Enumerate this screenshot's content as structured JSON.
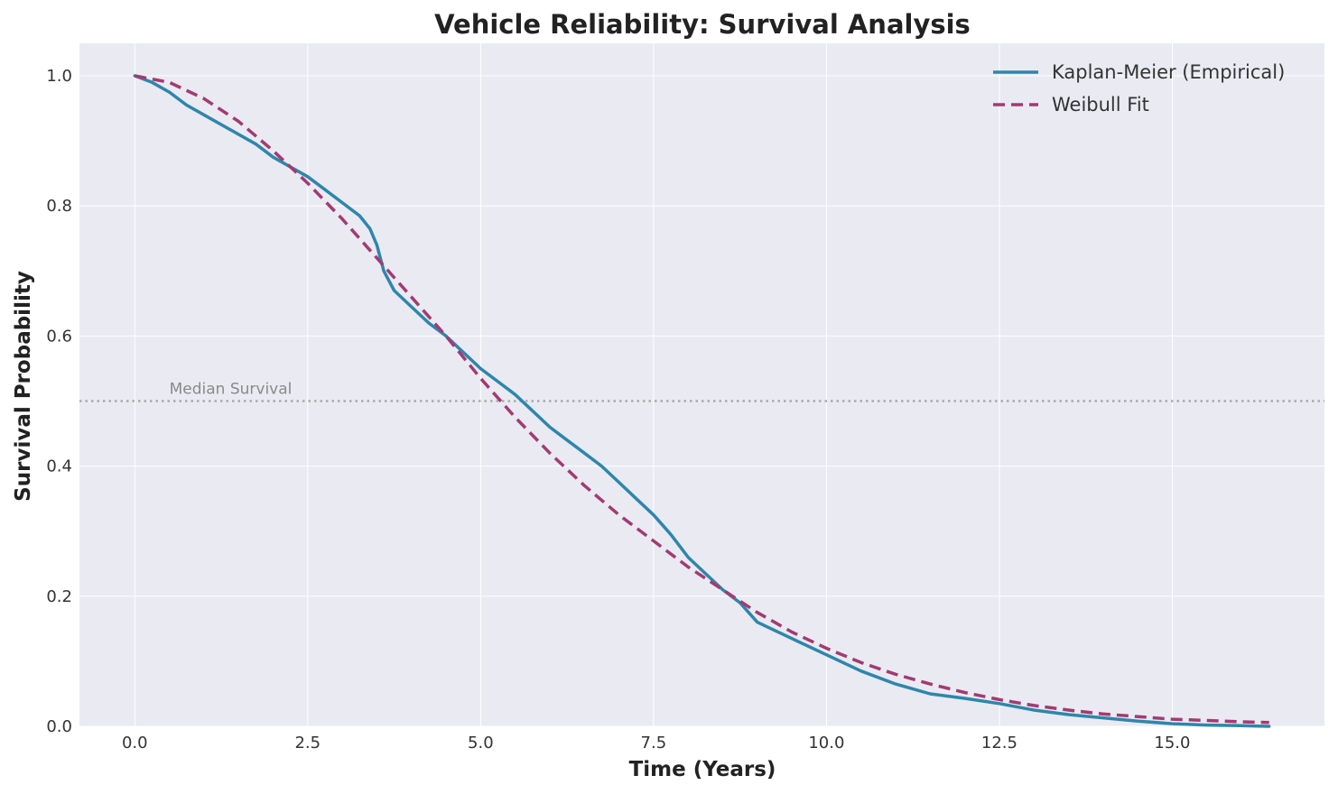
{
  "chart_data": {
    "type": "line",
    "title": "Vehicle Reliability: Survival Analysis",
    "xlabel": "Time (Years)",
    "ylabel": "Survival Probability",
    "xlim": [
      -0.8,
      17.2
    ],
    "ylim": [
      0.0,
      1.05
    ],
    "x_ticks": [
      0.0,
      2.5,
      5.0,
      7.5,
      10.0,
      12.5,
      15.0
    ],
    "x_tick_labels": [
      "0.0",
      "2.5",
      "5.0",
      "7.5",
      "10.0",
      "12.5",
      "15.0"
    ],
    "y_ticks": [
      0.0,
      0.2,
      0.4,
      0.6,
      0.8,
      1.0
    ],
    "y_tick_labels": [
      "0.0",
      "0.2",
      "0.4",
      "0.6",
      "0.8",
      "1.0"
    ],
    "grid": true,
    "legend_position": "top-right",
    "reference_line": {
      "y": 0.5,
      "label": "Median Survival",
      "color": "#aaaaaa",
      "style": "dotted"
    },
    "background_color": "#eaeaf2",
    "series": [
      {
        "name": "Kaplan-Meier (Empirical)",
        "color": "#2e86ab",
        "style": "solid",
        "x": [
          0.0,
          0.25,
          0.5,
          0.75,
          1.0,
          1.25,
          1.5,
          1.75,
          2.0,
          2.25,
          2.5,
          2.75,
          3.0,
          3.25,
          3.4,
          3.5,
          3.6,
          3.75,
          4.0,
          4.25,
          4.5,
          4.75,
          5.0,
          5.25,
          5.5,
          5.75,
          6.0,
          6.25,
          6.5,
          6.75,
          7.0,
          7.25,
          7.5,
          7.75,
          8.0,
          8.25,
          8.5,
          8.75,
          9.0,
          9.5,
          10.0,
          10.5,
          11.0,
          11.5,
          12.0,
          12.5,
          13.0,
          13.5,
          14.0,
          14.5,
          15.0,
          15.5,
          16.0,
          16.4
        ],
        "y": [
          1.0,
          0.99,
          0.975,
          0.955,
          0.94,
          0.925,
          0.91,
          0.895,
          0.875,
          0.86,
          0.845,
          0.825,
          0.805,
          0.785,
          0.765,
          0.74,
          0.7,
          0.67,
          0.645,
          0.62,
          0.6,
          0.575,
          0.55,
          0.53,
          0.51,
          0.485,
          0.46,
          0.44,
          0.42,
          0.4,
          0.375,
          0.35,
          0.325,
          0.295,
          0.26,
          0.235,
          0.21,
          0.19,
          0.16,
          0.135,
          0.11,
          0.085,
          0.065,
          0.05,
          0.043,
          0.035,
          0.025,
          0.018,
          0.013,
          0.008,
          0.004,
          0.002,
          0.001,
          0.0
        ]
      },
      {
        "name": "Weibull Fit",
        "color": "#a23b72",
        "style": "dashed",
        "x": [
          0.0,
          0.5,
          1.0,
          1.5,
          2.0,
          2.5,
          3.0,
          3.5,
          4.0,
          4.5,
          5.0,
          5.5,
          6.0,
          6.5,
          7.0,
          7.5,
          8.0,
          8.5,
          9.0,
          9.5,
          10.0,
          10.5,
          11.0,
          11.5,
          12.0,
          12.5,
          13.0,
          13.5,
          14.0,
          14.5,
          15.0,
          15.5,
          16.0,
          16.4
        ],
        "y": [
          1.0,
          0.99,
          0.965,
          0.93,
          0.885,
          0.835,
          0.78,
          0.72,
          0.66,
          0.6,
          0.535,
          0.475,
          0.42,
          0.37,
          0.325,
          0.285,
          0.245,
          0.21,
          0.175,
          0.145,
          0.12,
          0.098,
          0.08,
          0.065,
          0.052,
          0.041,
          0.032,
          0.025,
          0.019,
          0.015,
          0.011,
          0.009,
          0.007,
          0.006
        ]
      }
    ]
  }
}
